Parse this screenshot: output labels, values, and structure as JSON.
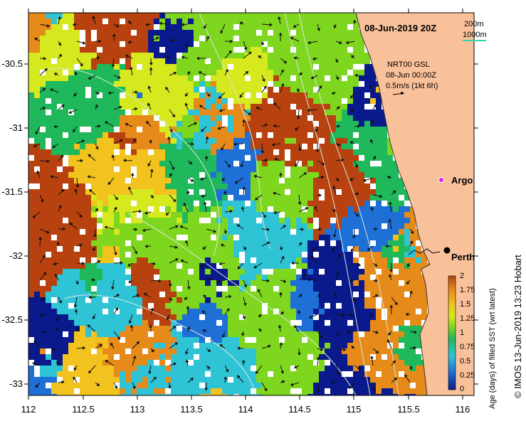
{
  "title": "08-Jun-2019 20Z",
  "scale_legend": {
    "depth_200": "200m",
    "depth_1000": "1000m"
  },
  "current_info": {
    "product": "NRT00 GSL",
    "time": "08-Jun 00:00Z",
    "scale": "0.5m/s (1kt 6h)"
  },
  "places": {
    "argo": "Argo",
    "perth": "Perth"
  },
  "colorbar": {
    "title": "Age (days) of filled SST (wrt latest)",
    "ticks": [
      "2",
      "1.75",
      "1.5",
      "1.25",
      "1",
      "0.75",
      "0.5",
      "0.25",
      "0"
    ]
  },
  "credit": "© IMOS 13-Jun-2019 13:23 Hobart",
  "axes": {
    "lat_ticks": [
      "-30.5",
      "-31",
      "-31.5",
      "-32",
      "-32.5",
      "-33"
    ],
    "lon_ticks": [
      "112",
      "112.5",
      "113",
      "113.5",
      "114",
      "114.5",
      "115",
      "115.5",
      "116"
    ],
    "lon_range": [
      112,
      116.2
    ],
    "lat_range": [
      -33.05,
      -30.05
    ]
  },
  "colors": {
    "land": "#f9c19a",
    "data_palette": [
      "#0a1a8c",
      "#1e6fd6",
      "#2fc3d6",
      "#1fb85a",
      "#7fd61f",
      "#d6e81e",
      "#f2c21e",
      "#e68a1a",
      "#b8420f"
    ],
    "argo": "#e01fe0",
    "contour": "#d8e8d8"
  }
}
